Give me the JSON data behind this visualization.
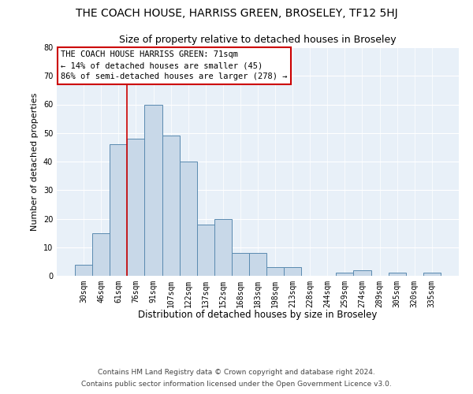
{
  "title1": "THE COACH HOUSE, HARRISS GREEN, BROSELEY, TF12 5HJ",
  "title2": "Size of property relative to detached houses in Broseley",
  "xlabel": "Distribution of detached houses by size in Broseley",
  "ylabel": "Number of detached properties",
  "categories": [
    "30sqm",
    "46sqm",
    "61sqm",
    "76sqm",
    "91sqm",
    "107sqm",
    "122sqm",
    "137sqm",
    "152sqm",
    "168sqm",
    "183sqm",
    "198sqm",
    "213sqm",
    "228sqm",
    "244sqm",
    "259sqm",
    "274sqm",
    "289sqm",
    "305sqm",
    "320sqm",
    "335sqm"
  ],
  "values": [
    4,
    15,
    46,
    48,
    60,
    49,
    40,
    18,
    20,
    8,
    8,
    3,
    3,
    0,
    0,
    1,
    2,
    0,
    1,
    0,
    1
  ],
  "bar_color": "#c8d8e8",
  "bar_edge_color": "#5a8ab0",
  "vline_color": "#cc0000",
  "annotation_text": "THE COACH HOUSE HARRISS GREEN: 71sqm\n← 14% of detached houses are smaller (45)\n86% of semi-detached houses are larger (278) →",
  "annotation_box_color": "#ffffff",
  "annotation_box_edge": "#cc0000",
  "ylim": [
    0,
    80
  ],
  "yticks": [
    0,
    10,
    20,
    30,
    40,
    50,
    60,
    70,
    80
  ],
  "background_color": "#e8f0f8",
  "footer1": "Contains HM Land Registry data © Crown copyright and database right 2024.",
  "footer2": "Contains public sector information licensed under the Open Government Licence v3.0.",
  "title1_fontsize": 10,
  "title2_fontsize": 9,
  "xlabel_fontsize": 8.5,
  "ylabel_fontsize": 8,
  "tick_fontsize": 7,
  "annotation_fontsize": 7.5,
  "footer_fontsize": 6.5
}
